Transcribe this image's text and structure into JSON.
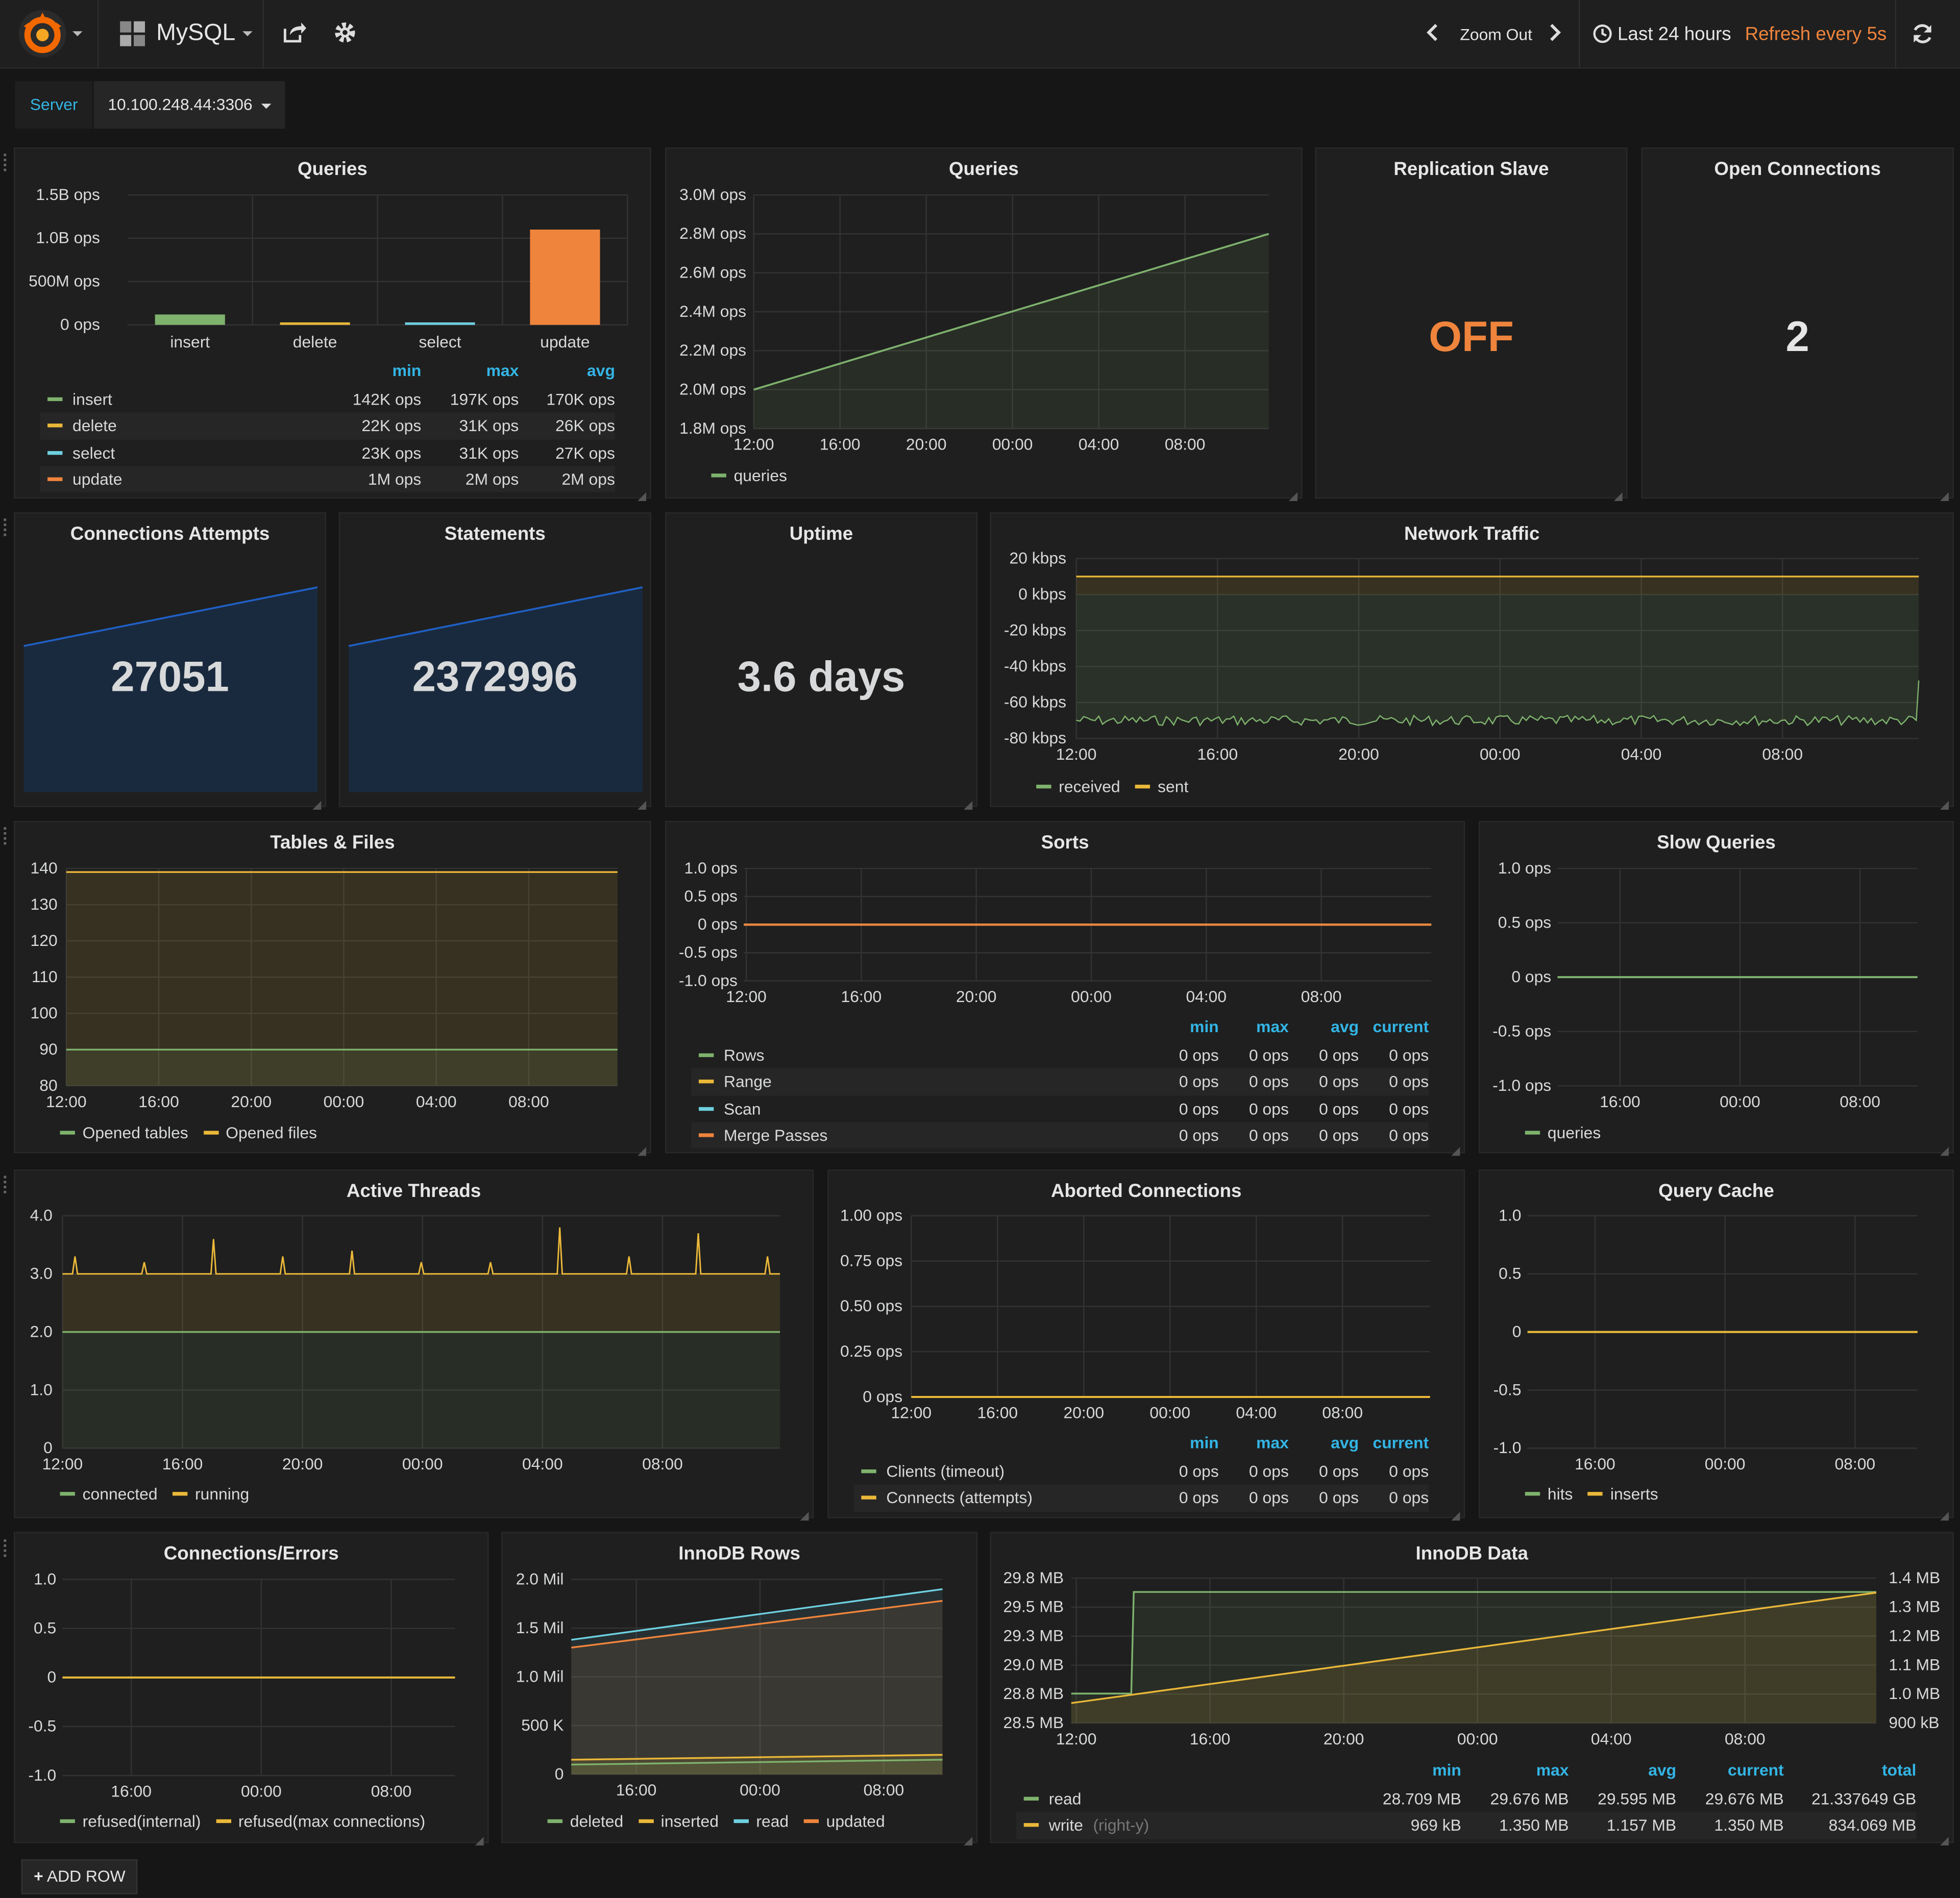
{
  "topbar": {
    "dashboard_title": "MySQL",
    "zoom_out": "Zoom Out",
    "time_range": "Last 24 hours",
    "refresh": "Refresh every 5s"
  },
  "template": {
    "label": "Server",
    "value": "10.100.248.44:3306"
  },
  "colors": {
    "green": "#7eb26d",
    "yellow": "#eab839",
    "cyan": "#6ed0e0",
    "orange": "#ef843c",
    "blue": "#33b5e5",
    "sparkline": "#1f60c4"
  },
  "icons": [
    "grafana-logo-icon",
    "dashboard-grid-icon",
    "share-icon",
    "gear-icon",
    "chevron-left-icon",
    "chevron-right-icon",
    "clock-icon",
    "refresh-icon",
    "plus-icon"
  ],
  "panels": {
    "queries_bar": {
      "title": "Queries",
      "legend_headers": [
        "min",
        "max",
        "avg"
      ],
      "legend_rows": [
        {
          "name": "insert",
          "min": "142K ops",
          "max": "197K ops",
          "avg": "170K ops"
        },
        {
          "name": "delete",
          "min": "22K ops",
          "max": "31K ops",
          "avg": "26K ops"
        },
        {
          "name": "select",
          "min": "23K ops",
          "max": "31K ops",
          "avg": "27K ops"
        },
        {
          "name": "update",
          "min": "1M ops",
          "max": "2M ops",
          "avg": "2M ops"
        }
      ]
    },
    "queries_line": {
      "title": "Queries",
      "legend": [
        "queries"
      ]
    },
    "replication": {
      "title": "Replication Slave",
      "value": "OFF"
    },
    "open_conn": {
      "title": "Open Connections",
      "value": "2"
    },
    "conn_attempts": {
      "title": "Connections Attempts",
      "value": "27051"
    },
    "statements": {
      "title": "Statements",
      "value": "2372996"
    },
    "uptime": {
      "title": "Uptime",
      "value": "3.6 days"
    },
    "network": {
      "title": "Network Traffic",
      "legend": [
        "received",
        "sent"
      ]
    },
    "tables_files": {
      "title": "Tables & Files",
      "legend": [
        "Opened tables",
        "Opened files"
      ]
    },
    "sorts": {
      "title": "Sorts",
      "legend_headers": [
        "min",
        "max",
        "avg",
        "current"
      ],
      "legend_rows": [
        {
          "name": "Rows",
          "min": "0 ops",
          "max": "0 ops",
          "avg": "0 ops",
          "current": "0 ops"
        },
        {
          "name": "Range",
          "min": "0 ops",
          "max": "0 ops",
          "avg": "0 ops",
          "current": "0 ops"
        },
        {
          "name": "Scan",
          "min": "0 ops",
          "max": "0 ops",
          "avg": "0 ops",
          "current": "0 ops"
        },
        {
          "name": "Merge Passes",
          "min": "0 ops",
          "max": "0 ops",
          "avg": "0 ops",
          "current": "0 ops"
        }
      ]
    },
    "slow_queries": {
      "title": "Slow Queries",
      "legend": [
        "queries"
      ]
    },
    "active_threads": {
      "title": "Active Threads",
      "legend": [
        "connected",
        "running"
      ]
    },
    "aborted": {
      "title": "Aborted Connections",
      "legend_headers": [
        "min",
        "max",
        "avg",
        "current"
      ],
      "legend_rows": [
        {
          "name": "Clients (timeout)",
          "min": "0 ops",
          "max": "0 ops",
          "avg": "0 ops",
          "current": "0 ops"
        },
        {
          "name": "Connects (attempts)",
          "min": "0 ops",
          "max": "0 ops",
          "avg": "0 ops",
          "current": "0 ops"
        }
      ]
    },
    "query_cache": {
      "title": "Query Cache",
      "legend": [
        "hits",
        "inserts"
      ]
    },
    "conn_errors": {
      "title": "Connections/Errors",
      "legend": [
        "refused(internal)",
        "refused(max connections)"
      ]
    },
    "innodb_rows": {
      "title": "InnoDB Rows",
      "legend": [
        "deleted",
        "inserted",
        "read",
        "updated"
      ]
    },
    "innodb_data": {
      "title": "InnoDB Data",
      "legend_headers": [
        "min",
        "max",
        "avg",
        "current",
        "total"
      ],
      "legend_rows": [
        {
          "name": "read",
          "suffix": "",
          "min": "28.709 MB",
          "max": "29.676 MB",
          "avg": "29.595 MB",
          "current": "29.676 MB",
          "total": "21.337649 GB"
        },
        {
          "name": "write",
          "suffix": "(right-y)",
          "min": "969 kB",
          "max": "1.350 MB",
          "avg": "1.157 MB",
          "current": "1.350 MB",
          "total": "834.069 MB"
        }
      ]
    }
  },
  "add_row": "ADD ROW",
  "chart_data": [
    {
      "id": "queries_bar",
      "type": "bar",
      "title": "Queries",
      "categories": [
        "insert",
        "delete",
        "select",
        "update"
      ],
      "values": [
        170000,
        26000,
        27000,
        2000000
      ],
      "bar_heights_shown": [
        120000000,
        15000000,
        15000000,
        1100000000
      ],
      "yticks": [
        "1.5B ops",
        "1.0B ops",
        "500M ops",
        "0 ops"
      ],
      "ylim": [
        0,
        1500000000
      ],
      "colors": [
        "#7eb26d",
        "#eab839",
        "#6ed0e0",
        "#ef843c"
      ]
    },
    {
      "id": "queries_line",
      "type": "area",
      "title": "Queries",
      "xticks": [
        "12:00",
        "16:00",
        "20:00",
        "00:00",
        "04:00",
        "08:00"
      ],
      "yticks": [
        "3.0M ops",
        "2.8M ops",
        "2.6M ops",
        "2.4M ops",
        "2.2M ops",
        "2.0M ops",
        "1.8M ops"
      ],
      "ylim": [
        1.8,
        3.0
      ],
      "series": [
        {
          "name": "queries",
          "color": "#7eb26d",
          "start": 2.0,
          "end": 2.8
        }
      ]
    },
    {
      "id": "conn_attempts_spark",
      "type": "area",
      "series": [
        {
          "start": 0.85,
          "end": 0.7
        }
      ]
    },
    {
      "id": "statements_spark",
      "type": "area",
      "series": [
        {
          "start": 0.85,
          "end": 0.7
        }
      ]
    },
    {
      "id": "network",
      "type": "area",
      "title": "Network Traffic",
      "xticks": [
        "12:00",
        "16:00",
        "20:00",
        "00:00",
        "04:00",
        "08:00"
      ],
      "yticks": [
        "20 kbps",
        "0 kbps",
        "-20 kbps",
        "-40 kbps",
        "-60 kbps",
        "-80 kbps"
      ],
      "ylim": [
        -80,
        20
      ],
      "series": [
        {
          "name": "received",
          "color": "#7eb26d",
          "value": -70
        },
        {
          "name": "sent",
          "color": "#eab839",
          "value": 10
        }
      ]
    },
    {
      "id": "tables_files",
      "type": "area",
      "title": "Tables & Files",
      "xticks": [
        "12:00",
        "16:00",
        "20:00",
        "00:00",
        "04:00",
        "08:00"
      ],
      "yticks": [
        "140",
        "130",
        "120",
        "110",
        "100",
        "90",
        "80"
      ],
      "ylim": [
        80,
        140
      ],
      "series": [
        {
          "name": "Opened tables",
          "color": "#7eb26d",
          "value": 90
        },
        {
          "name": "Opened files",
          "color": "#eab839",
          "value": 139
        }
      ]
    },
    {
      "id": "sorts",
      "type": "line",
      "title": "Sorts",
      "xticks": [
        "12:00",
        "16:00",
        "20:00",
        "00:00",
        "04:00",
        "08:00"
      ],
      "yticks": [
        "1.0 ops",
        "0.5 ops",
        "0 ops",
        "-0.5 ops",
        "-1.0 ops"
      ],
      "ylim": [
        -1,
        1
      ],
      "series": [
        {
          "name": "Rows",
          "value": 0
        },
        {
          "name": "Range",
          "value": 0
        },
        {
          "name": "Scan",
          "value": 0
        },
        {
          "name": "Merge Passes",
          "value": 0
        }
      ]
    },
    {
      "id": "slow_queries",
      "type": "line",
      "title": "Slow Queries",
      "xticks": [
        "16:00",
        "00:00",
        "08:00"
      ],
      "yticks": [
        "1.0 ops",
        "0.5 ops",
        "0 ops",
        "-0.5 ops",
        "-1.0 ops"
      ],
      "ylim": [
        -1,
        1
      ],
      "series": [
        {
          "name": "queries",
          "value": 0
        }
      ]
    },
    {
      "id": "active_threads",
      "type": "area",
      "title": "Active Threads",
      "xticks": [
        "12:00",
        "16:00",
        "20:00",
        "00:00",
        "04:00",
        "08:00"
      ],
      "yticks": [
        "4.0",
        "3.0",
        "2.0",
        "1.0",
        "0"
      ],
      "ylim": [
        0,
        4
      ],
      "series": [
        {
          "name": "connected",
          "color": "#7eb26d",
          "value": 2.0
        },
        {
          "name": "running",
          "color": "#eab839",
          "value": 3.0,
          "spikes": [
            3.3,
            3.2,
            3.6,
            3.3,
            3.4,
            3.2,
            3.2,
            3.8,
            3.3,
            3.7,
            3.3
          ]
        }
      ]
    },
    {
      "id": "aborted",
      "type": "line",
      "title": "Aborted Connections",
      "xticks": [
        "12:00",
        "16:00",
        "20:00",
        "00:00",
        "04:00",
        "08:00"
      ],
      "yticks": [
        "1.00 ops",
        "0.75 ops",
        "0.50 ops",
        "0.25 ops",
        "0 ops"
      ],
      "ylim": [
        0,
        1
      ],
      "series": [
        {
          "name": "Clients (timeout)",
          "value": 0
        },
        {
          "name": "Connects (attempts)",
          "value": 0
        }
      ]
    },
    {
      "id": "query_cache",
      "type": "line",
      "title": "Query Cache",
      "xticks": [
        "16:00",
        "00:00",
        "08:00"
      ],
      "yticks": [
        "1.0",
        "0.5",
        "0",
        "-0.5",
        "-1.0"
      ],
      "ylim": [
        -1,
        1
      ],
      "series": [
        {
          "name": "hits",
          "value": 0
        },
        {
          "name": "inserts",
          "value": 0
        }
      ]
    },
    {
      "id": "conn_errors",
      "type": "line",
      "title": "Connections/Errors",
      "xticks": [
        "16:00",
        "00:00",
        "08:00"
      ],
      "yticks": [
        "1.0",
        "0.5",
        "0",
        "-0.5",
        "-1.0"
      ],
      "ylim": [
        -1,
        1
      ],
      "series": [
        {
          "name": "refused(internal)",
          "value": 0
        },
        {
          "name": "refused(max connections)",
          "value": 0
        }
      ]
    },
    {
      "id": "innodb_rows",
      "type": "area",
      "title": "InnoDB Rows",
      "xticks": [
        "16:00",
        "00:00",
        "08:00"
      ],
      "yticks": [
        "2.0 Mil",
        "1.5 Mil",
        "1.0 Mil",
        "500 K",
        "0"
      ],
      "ylim": [
        0,
        2000000
      ],
      "series": [
        {
          "name": "deleted",
          "color": "#7eb26d",
          "start": 100000,
          "end": 150000
        },
        {
          "name": "inserted",
          "color": "#eab839",
          "start": 150000,
          "end": 200000
        },
        {
          "name": "read",
          "color": "#6ed0e0",
          "start": 1380000,
          "end": 1900000
        },
        {
          "name": "updated",
          "color": "#ef843c",
          "start": 1300000,
          "end": 1780000
        }
      ]
    },
    {
      "id": "innodb_data",
      "type": "area",
      "title": "InnoDB Data",
      "xticks": [
        "12:00",
        "16:00",
        "20:00",
        "00:00",
        "04:00",
        "08:00"
      ],
      "yticks_left": [
        "29.8 MB",
        "29.5 MB",
        "29.3 MB",
        "29.0 MB",
        "28.8 MB",
        "28.5 MB"
      ],
      "yticks_right": [
        "1.4 MB",
        "1.3 MB",
        "1.2 MB",
        "1.1 MB",
        "1.0 MB",
        "900 kB"
      ],
      "ylim_left": [
        28.5,
        29.8
      ],
      "ylim_right": [
        0.9,
        1.4
      ],
      "series": [
        {
          "name": "read",
          "color": "#7eb26d",
          "start": 28.709,
          "end": 29.676
        },
        {
          "name": "write",
          "color": "#eab839",
          "axis": "right",
          "start": 0.969,
          "end": 1.35
        }
      ]
    }
  ]
}
